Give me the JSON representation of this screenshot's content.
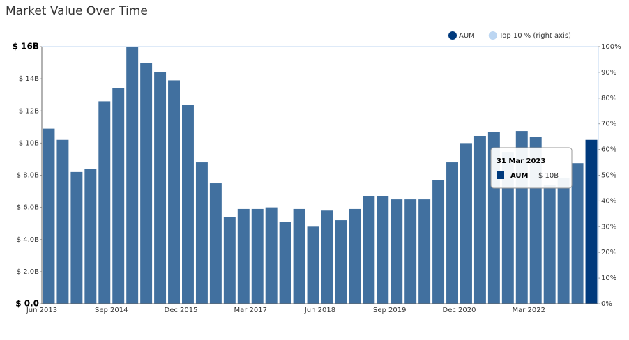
{
  "chart_data": {
    "type": "bar",
    "title": "Market Value Over Time",
    "categories": [
      "Jun 2013",
      null,
      null,
      null,
      null,
      "Sep 2014",
      null,
      null,
      null,
      null,
      "Dec 2015",
      null,
      null,
      null,
      null,
      "Mar 2017",
      null,
      null,
      null,
      null,
      "Jun 2018",
      null,
      null,
      null,
      null,
      "Sep 2019",
      null,
      null,
      null,
      null,
      "Dec 2020",
      null,
      null,
      null,
      null,
      "Mar 2022",
      null,
      null,
      null,
      null
    ],
    "series": [
      {
        "name": "AUM",
        "color": "#41709f",
        "legend_color": "#003a7d",
        "highlight_color": "#003a7d",
        "values": [
          10.9,
          10.2,
          8.2,
          8.4,
          12.6,
          13.4,
          16.0,
          15.0,
          14.4,
          13.9,
          12.4,
          8.8,
          7.5,
          5.4,
          5.9,
          5.9,
          6.0,
          5.1,
          5.9,
          4.8,
          5.8,
          5.2,
          5.9,
          6.7,
          6.7,
          6.5,
          6.5,
          6.5,
          7.7,
          8.8,
          10.0,
          10.45,
          10.7,
          9.45,
          10.75,
          10.4,
          7.4,
          7.85,
          8.75,
          10.2
        ]
      },
      {
        "name": "Top 10 % (right axis)",
        "color": "#bcd6f2",
        "axis": "y2",
        "values": [
          null,
          null,
          null,
          null,
          null,
          null,
          null,
          null,
          null,
          null,
          null,
          null,
          null,
          null,
          null,
          null,
          null,
          null,
          null,
          null,
          null,
          null,
          null,
          null,
          null,
          null,
          null,
          null,
          null,
          null,
          null,
          null,
          null,
          null,
          null,
          null,
          null,
          null,
          null,
          null
        ]
      }
    ],
    "ylim": [
      0,
      16
    ],
    "yticks": [
      {
        "value": 0,
        "label": "$ 0.0"
      },
      {
        "value": 2,
        "label": "$ 2.0B"
      },
      {
        "value": 4,
        "label": "$ 4.0B"
      },
      {
        "value": 6,
        "label": "$ 6.0B"
      },
      {
        "value": 8,
        "label": "$ 8.0B"
      },
      {
        "value": 10,
        "label": "$ 10B"
      },
      {
        "value": 12,
        "label": "$ 12B"
      },
      {
        "value": 14,
        "label": "$ 14B"
      },
      {
        "value": 16,
        "label": "$ 16B"
      }
    ],
    "y2lim": [
      0,
      100
    ],
    "y2ticks": [
      {
        "value": 0,
        "label": "0%"
      },
      {
        "value": 10,
        "label": "10%"
      },
      {
        "value": 20,
        "label": "20%"
      },
      {
        "value": 30,
        "label": "30%"
      },
      {
        "value": 40,
        "label": "40%"
      },
      {
        "value": 50,
        "label": "50%"
      },
      {
        "value": 60,
        "label": "60%"
      },
      {
        "value": 70,
        "label": "70%"
      },
      {
        "value": 80,
        "label": "80%"
      },
      {
        "value": 90,
        "label": "90%"
      },
      {
        "value": 100,
        "label": "100%"
      }
    ],
    "legend": "top-right",
    "tooltip": {
      "title": "31 Mar 2023",
      "value_label": "$ 10B"
    }
  }
}
